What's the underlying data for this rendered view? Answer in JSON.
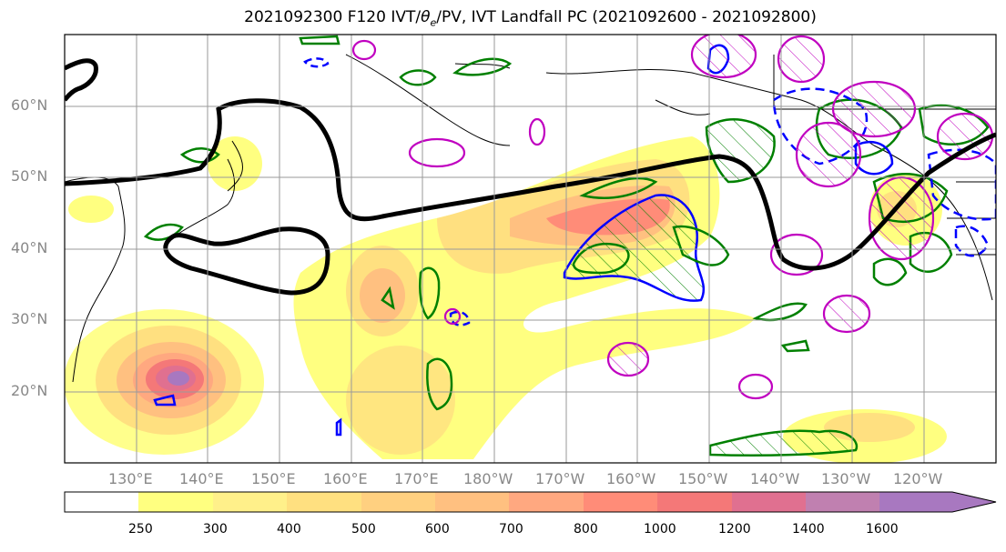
{
  "title_prefix": "2021092300 F120 IVT/",
  "title_theta": "θ",
  "title_sub": "e",
  "title_suffix": "/PV, IVT Landfall PC (2021092600 - 2021092800)",
  "map": {
    "lat_labels": [
      "60°N",
      "50°N",
      "40°N",
      "30°N",
      "20°N"
    ],
    "lon_labels": [
      "130°E",
      "140°E",
      "150°E",
      "160°E",
      "170°E",
      "180°W",
      "170°W",
      "160°W",
      "150°W",
      "140°W",
      "130°W",
      "120°W"
    ]
  },
  "legend": {
    "levels": [
      "250",
      "300",
      "400",
      "500",
      "600",
      "700",
      "800",
      "1000",
      "1200",
      "1400",
      "1600"
    ],
    "colors": [
      "#ffff80",
      "#fff08a",
      "#ffe080",
      "#ffd080",
      "#ffc080",
      "#ffa880",
      "#ff8c78",
      "#f47878",
      "#e07090",
      "#c080b0",
      "#a878c0"
    ]
  },
  "colors": {
    "ivt_low": "#ffff80",
    "ivt_high": "#a878c0",
    "pv_contour": "#000000",
    "theta_positive": "#008000",
    "theta_negative": "#0000ff",
    "landfall_pc": "#c000c0",
    "grid": "#9a9a9a"
  }
}
